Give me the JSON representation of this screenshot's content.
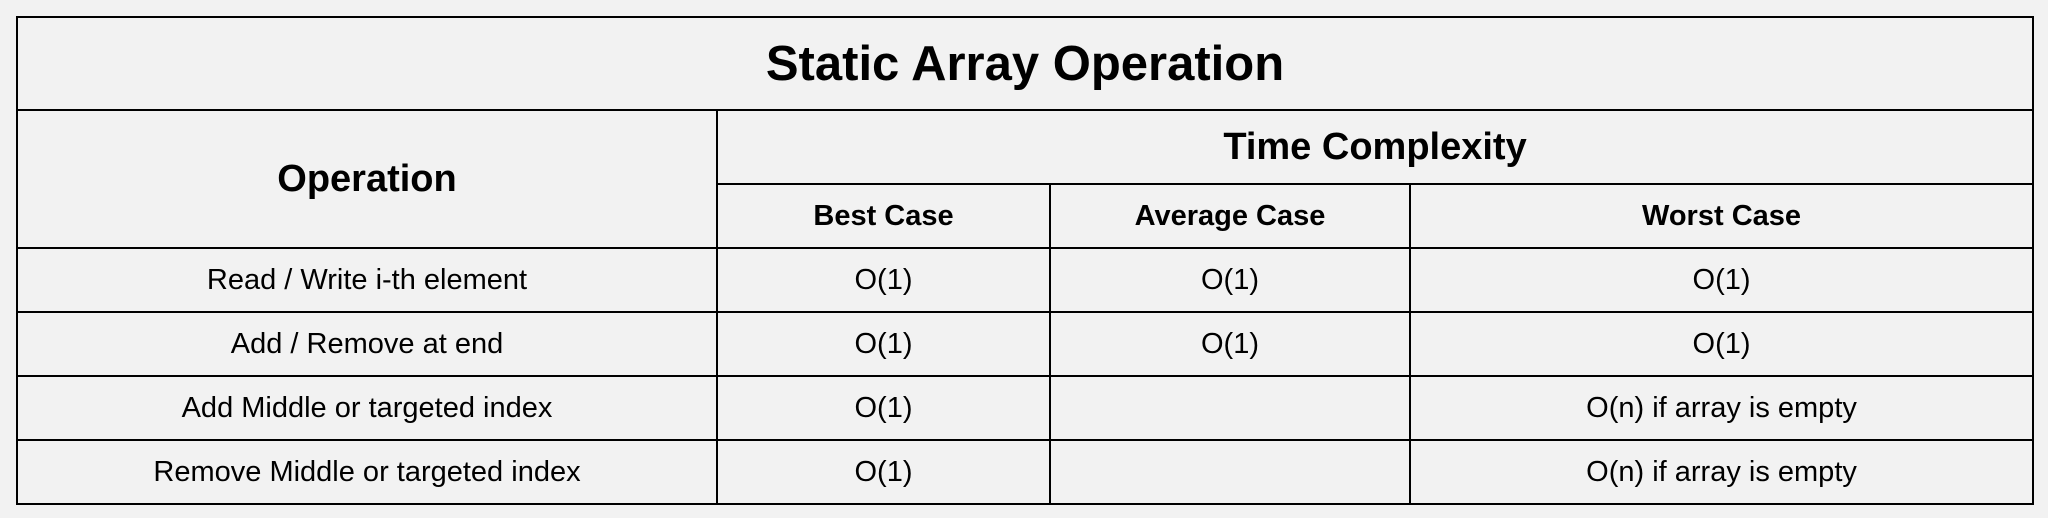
{
  "table": {
    "title": "Static Array Operation",
    "operation_header": "Operation",
    "time_complexity_header": "Time Complexity",
    "case_headers": [
      "Best Case",
      "Average Case",
      "Worst Case"
    ],
    "rows": [
      {
        "operation": "Read / Write i-th element",
        "best": "O(1)",
        "average": "O(1)",
        "worst": "O(1)"
      },
      {
        "operation": "Add / Remove at end",
        "best": "O(1)",
        "average": "O(1)",
        "worst": "O(1)"
      },
      {
        "operation": "Add Middle or targeted index",
        "best": "O(1)",
        "average": "",
        "worst": "O(n) if array is empty"
      },
      {
        "operation": "Remove Middle or targeted index",
        "best": "O(1)",
        "average": "",
        "worst": "O(n) if array is empty"
      }
    ]
  }
}
